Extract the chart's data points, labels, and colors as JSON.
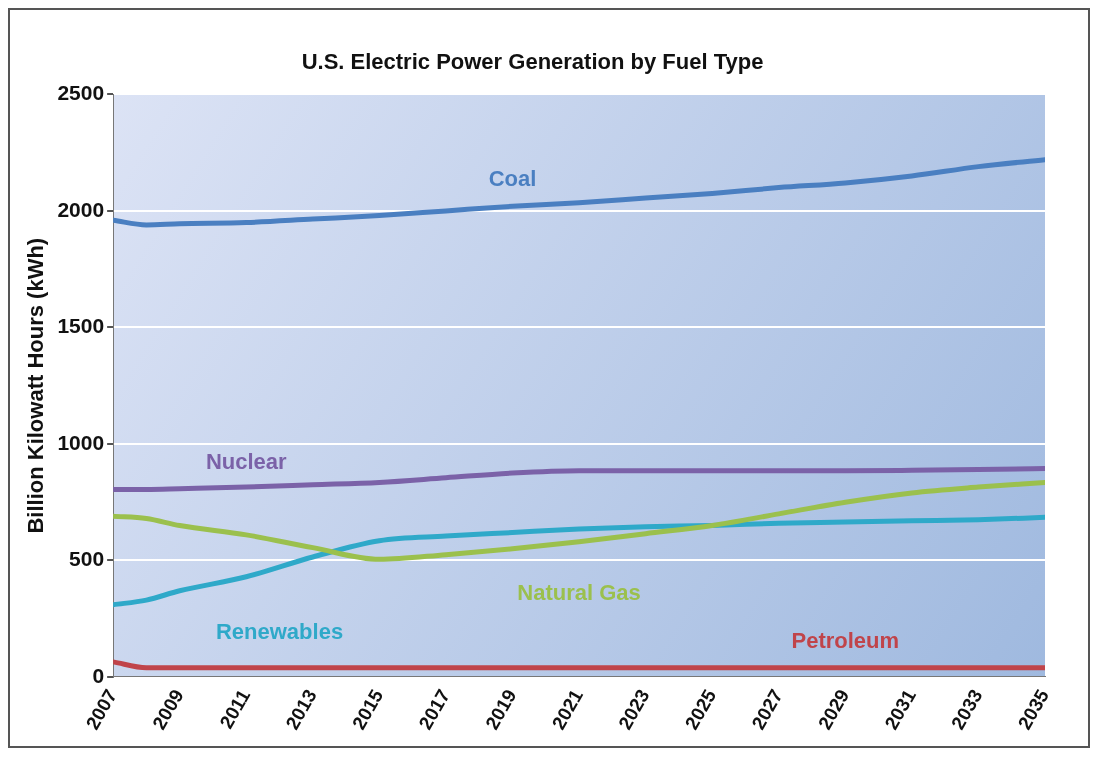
{
  "chart_data": {
    "type": "line",
    "title": "U.S. Electric Power Generation by Fuel Type",
    "ylabel": "Billion Kilowatt Hours (kWh)",
    "x": [
      2007,
      2008,
      2009,
      2011,
      2013,
      2015,
      2017,
      2019,
      2021,
      2023,
      2025,
      2027,
      2029,
      2031,
      2033,
      2035
    ],
    "series": [
      {
        "name": "Coal",
        "color": "#4a7fc1",
        "values": [
          1960,
          1940,
          1945,
          1950,
          1965,
          1980,
          2000,
          2020,
          2035,
          2055,
          2075,
          2100,
          2120,
          2150,
          2190,
          2220
        ]
      },
      {
        "name": "Nuclear",
        "color": "#7b62a8",
        "values": [
          805,
          805,
          808,
          815,
          825,
          835,
          855,
          875,
          885,
          885,
          885,
          885,
          885,
          887,
          890,
          895
        ]
      },
      {
        "name": "Natural Gas",
        "color": "#9bc04d",
        "values": [
          690,
          680,
          650,
          610,
          555,
          505,
          525,
          550,
          580,
          615,
          650,
          700,
          750,
          790,
          815,
          835
        ]
      },
      {
        "name": "Renewables",
        "color": "#2fa9c9",
        "values": [
          310,
          330,
          370,
          430,
          515,
          585,
          605,
          620,
          635,
          645,
          650,
          660,
          665,
          670,
          675,
          685
        ]
      },
      {
        "name": "Petroleum",
        "color": "#c0444a",
        "values": [
          65,
          40,
          40,
          40,
          40,
          40,
          40,
          40,
          40,
          40,
          40,
          40,
          40,
          40,
          40,
          40
        ]
      }
    ],
    "xlim": [
      2007,
      2035
    ],
    "xticks": [
      2007,
      2009,
      2011,
      2013,
      2015,
      2017,
      2019,
      2021,
      2023,
      2025,
      2027,
      2029,
      2031,
      2033,
      2035
    ],
    "ylim": [
      0,
      2500
    ],
    "yticks": [
      0,
      500,
      1000,
      1500,
      2000,
      2500
    ],
    "grid": "y",
    "legend": false,
    "marker": "none",
    "line_style": "solid"
  }
}
